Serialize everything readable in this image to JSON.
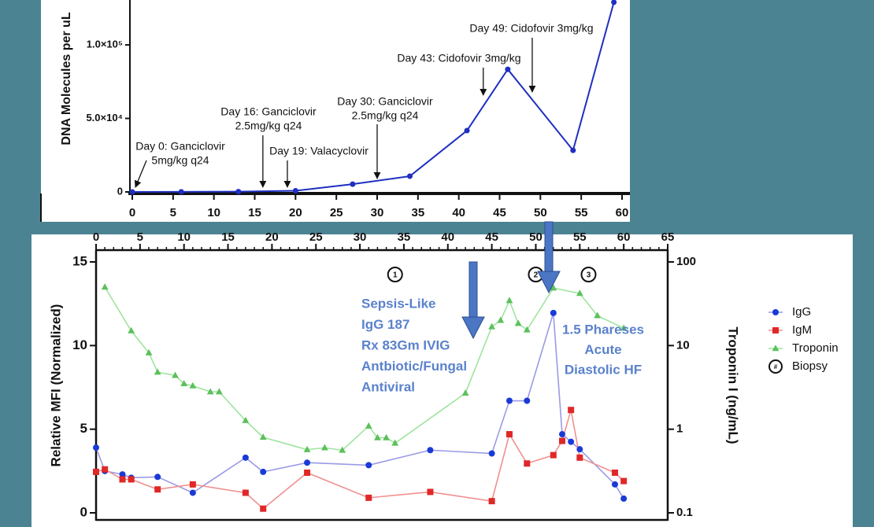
{
  "chart_data": [
    {
      "type": "line",
      "y_label": "DNA Molecules per uL",
      "x": [
        0,
        6,
        13,
        20,
        27,
        34,
        41,
        46,
        54,
        59
      ],
      "series": [
        {
          "color": "#1f2fc0",
          "values": [
            0,
            100,
            200,
            800,
            5300,
            10700,
            41700,
            83400,
            28300,
            129000
          ]
        }
      ],
      "xlim": [
        0,
        60
      ],
      "xticks": [
        0,
        5,
        10,
        15,
        20,
        25,
        30,
        35,
        40,
        45,
        50,
        55,
        60
      ],
      "ylim": [
        0,
        130000
      ],
      "yticks": [
        0,
        {
          "value": 50000,
          "label": "5.0×10⁴"
        },
        {
          "value": 100000,
          "label": "1.0×10⁵"
        }
      ],
      "annotations": [
        {
          "lines": [
            "Day 0: Ganciclovir",
            "5mg/kg q24"
          ],
          "x": 0
        },
        {
          "lines": [
            "Day 16: Ganciclovir",
            "2.5mg/kg q24"
          ],
          "x": 16
        },
        {
          "lines": [
            "Day 19: Valacyclovir"
          ],
          "x": 19
        },
        {
          "lines": [
            "Day 30: Ganciclovir",
            "2.5mg/kg q24"
          ],
          "x": 30
        },
        {
          "lines": [
            "Day 43: Cidofovir 3mg/kg"
          ],
          "x": 43
        },
        {
          "lines": [
            "Day 49: Cidofovir 3mg/kg"
          ],
          "x": 49
        }
      ]
    },
    {
      "type": "line",
      "y_label": "Relative MFI (Normalized)",
      "y2_label": "Troponin I (ng/mL)",
      "y2_log": true,
      "xlim": [
        0,
        65
      ],
      "xticks": [
        0,
        5,
        10,
        15,
        20,
        25,
        30,
        35,
        40,
        45,
        50,
        55,
        60,
        65
      ],
      "ylim": [
        0,
        15
      ],
      "yticks": [
        0,
        5,
        10,
        15
      ],
      "y2lim": [
        0.1,
        100
      ],
      "y2ticks": [
        0.1,
        1,
        10,
        100
      ],
      "legend": "right",
      "series": [
        {
          "name": "IgG",
          "color": "#1a3ad8",
          "line_color": "#9a9ae6",
          "marker": "circle",
          "x": [
            0,
            1,
            3,
            4,
            7,
            11,
            17,
            19,
            24,
            31,
            38,
            45,
            47,
            49,
            52,
            53,
            54,
            55,
            59,
            60
          ],
          "values": [
            3.9,
            2.5,
            2.3,
            2.1,
            2.15,
            1.2,
            3.3,
            2.45,
            3.0,
            2.85,
            3.75,
            3.55,
            6.7,
            6.7,
            11.95,
            4.7,
            4.25,
            3.8,
            1.7,
            0.85
          ]
        },
        {
          "name": "IgM",
          "color": "#e02828",
          "line_color": "#f09090",
          "marker": "square",
          "x": [
            0,
            1,
            3,
            4,
            7,
            11,
            17,
            19,
            24,
            31,
            38,
            45,
            47,
            49,
            52,
            53,
            54,
            55,
            59,
            60
          ],
          "values": [
            2.45,
            2.6,
            2.0,
            2.0,
            1.4,
            1.7,
            1.2,
            0.25,
            2.4,
            0.9,
            1.25,
            0.7,
            4.7,
            2.95,
            3.45,
            4.3,
            6.15,
            3.3,
            2.4,
            1.9
          ]
        },
        {
          "name": "Troponin",
          "color": "#5cc05c",
          "line_color": "#9ee49e",
          "marker": "triangle",
          "axis": "y2",
          "x": [
            1,
            4,
            6,
            7,
            9,
            10,
            11,
            13,
            14,
            17,
            19,
            24,
            26,
            28,
            31,
            32,
            33,
            34,
            42,
            45,
            46,
            47,
            48,
            49,
            52,
            55,
            57,
            60
          ],
          "values": [
            50,
            15,
            8.2,
            4.8,
            4.4,
            3.5,
            3.3,
            2.8,
            2.8,
            1.27,
            0.8,
            0.57,
            0.6,
            0.56,
            1.09,
            0.79,
            0.79,
            0.68,
            2.7,
            16.8,
            20,
            34.5,
            18.4,
            15.4,
            48.8,
            42,
            22.8,
            16.1
          ]
        }
      ],
      "biopsies": {
        "name": "Biopsy",
        "symbol": "#",
        "x": [
          34,
          50,
          56
        ],
        "labels": [
          "1",
          "2",
          "3"
        ]
      },
      "annotations": [
        {
          "lines": [
            "Sepsis-Like",
            "IgG 187",
            "Rx 83Gm IVIG",
            "Antbiotic/Fungal",
            "Antiviral"
          ]
        },
        {
          "lines": [
            "1.5 Phareses",
            "Acute",
            "Diastolic HF"
          ]
        }
      ]
    }
  ]
}
